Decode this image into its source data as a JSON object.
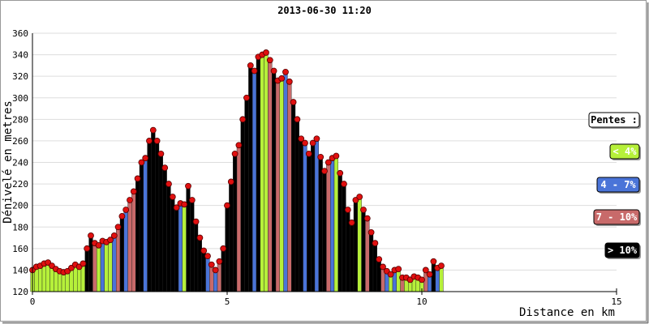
{
  "chart_data": {
    "type": "bar",
    "title": "2013-06-30 11:20",
    "xlabel": "Distance en km",
    "ylabel": "Dénivelé en metres",
    "xlim": [
      0,
      15
    ],
    "xticks": [
      0,
      5,
      10,
      15
    ],
    "ylim": [
      120,
      360
    ],
    "yticks": [
      120,
      140,
      160,
      180,
      200,
      220,
      240,
      260,
      280,
      300,
      320,
      340,
      360
    ],
    "grid": true,
    "bar_width": 0.1,
    "marker_color": "#e01010",
    "x": [
      0,
      0.1,
      0.2,
      0.3,
      0.4,
      0.5,
      0.6,
      0.7,
      0.8,
      0.9,
      1,
      1.1,
      1.2,
      1.3,
      1.4,
      1.5,
      1.6,
      1.7,
      1.8,
      1.9,
      2,
      2.1,
      2.2,
      2.3,
      2.4,
      2.5,
      2.6,
      2.7,
      2.8,
      2.9,
      3,
      3.1,
      3.2,
      3.3,
      3.4,
      3.5,
      3.6,
      3.7,
      3.8,
      3.9,
      4,
      4.1,
      4.2,
      4.3,
      4.4,
      4.5,
      4.6,
      4.7,
      4.8,
      4.9,
      5,
      5.1,
      5.2,
      5.3,
      5.4,
      5.5,
      5.6,
      5.7,
      5.8,
      5.9,
      6,
      6.1,
      6.2,
      6.3,
      6.4,
      6.5,
      6.6,
      6.7,
      6.8,
      6.9,
      7,
      7.1,
      7.2,
      7.3,
      7.4,
      7.5,
      7.6,
      7.7,
      7.8,
      7.9,
      8,
      8.1,
      8.2,
      8.3,
      8.4,
      8.5,
      8.6,
      8.7,
      8.8,
      8.9,
      9,
      9.1,
      9.2,
      9.3,
      9.4,
      9.5,
      9.6,
      9.7,
      9.8,
      9.9,
      10,
      10.1,
      10.2,
      10.3,
      10.4,
      10.5
    ],
    "values": [
      140,
      143,
      144,
      146,
      147,
      144,
      141,
      139,
      138,
      139,
      142,
      145,
      143,
      146,
      160,
      172,
      165,
      163,
      167,
      166,
      168,
      172,
      180,
      190,
      196,
      205,
      213,
      225,
      240,
      244,
      260,
      270,
      260,
      248,
      235,
      220,
      208,
      198,
      202,
      201,
      218,
      205,
      185,
      170,
      158,
      153,
      145,
      140,
      148,
      160,
      200,
      222,
      248,
      256,
      280,
      300,
      330,
      325,
      338,
      340,
      342,
      335,
      325,
      316,
      318,
      324,
      315,
      296,
      280,
      262,
      258,
      248,
      258,
      262,
      245,
      232,
      240,
      244,
      246,
      230,
      220,
      196,
      184,
      205,
      208,
      196,
      188,
      175,
      165,
      150,
      143,
      139,
      136,
      140,
      141,
      133,
      133,
      131,
      134,
      133,
      131,
      140,
      136,
      148,
      142,
      144
    ],
    "bar_colors": [
      "#b6f03a",
      "#b6f03a",
      "#b6f03a",
      "#b6f03a",
      "#b6f03a",
      "#b6f03a",
      "#b6f03a",
      "#b6f03a",
      "#b6f03a",
      "#b6f03a",
      "#b6f03a",
      "#b6f03a",
      "#b6f03a",
      "#b6f03a",
      "#000000",
      "#000000",
      "#c86a6a",
      "#b6f03a",
      "#4a74d8",
      "#b6f03a",
      "#b6f03a",
      "#4a74d8",
      "#c86a6a",
      "#000000",
      "#4a74d8",
      "#c86a6a",
      "#c86a6a",
      "#000000",
      "#000000",
      "#4a74d8",
      "#000000",
      "#000000",
      "#000000",
      "#000000",
      "#000000",
      "#000000",
      "#000000",
      "#000000",
      "#4a74d8",
      "#b6f03a",
      "#000000",
      "#000000",
      "#000000",
      "#000000",
      "#000000",
      "#4a74d8",
      "#c86a6a",
      "#4a74d8",
      "#c86a6a",
      "#000000",
      "#000000",
      "#000000",
      "#000000",
      "#c86a6a",
      "#000000",
      "#000000",
      "#000000",
      "#4a74d8",
      "#000000",
      "#b6f03a",
      "#b6f03a",
      "#c86a6a",
      "#000000",
      "#c86a6a",
      "#b6f03a",
      "#4a74d8",
      "#c86a6a",
      "#000000",
      "#000000",
      "#000000",
      "#4a74d8",
      "#000000",
      "#000000",
      "#4a74d8",
      "#000000",
      "#000000",
      "#c86a6a",
      "#4a74d8",
      "#b6f03a",
      "#000000",
      "#000000",
      "#000000",
      "#000000",
      "#000000",
      "#b6f03a",
      "#000000",
      "#c86a6a",
      "#000000",
      "#000000",
      "#000000",
      "#c86a6a",
      "#4a74d8",
      "#b6f03a",
      "#4a74d8",
      "#b6f03a",
      "#c86a6a",
      "#b6f03a",
      "#b6f03a",
      "#b6f03a",
      "#b6f03a",
      "#b6f03a",
      "#c86a6a",
      "#4a74d8",
      "#000000",
      "#4a74d8",
      "#b6f03a"
    ],
    "legend_title": "Pentes :",
    "legend": [
      {
        "label": "< 4%",
        "color": "#b6f03a"
      },
      {
        "label": "4 - 7%",
        "color": "#4a74d8"
      },
      {
        "label": "7 - 10%",
        "color": "#c86a6a"
      },
      {
        "label": "> 10%",
        "color": "#000000"
      }
    ]
  }
}
